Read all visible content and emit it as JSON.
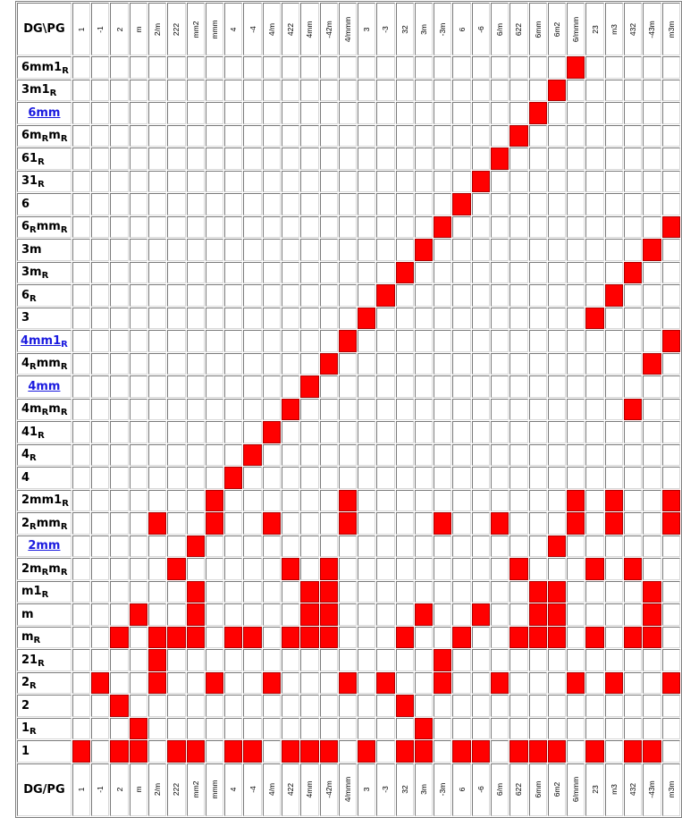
{
  "corner_top": "DG\\PG",
  "corner_bottom": "DG/PG",
  "columns": [
    "1",
    "-1",
    "2",
    "m",
    "2/m",
    "222",
    "mm2",
    "mmm",
    "4",
    "-4",
    "4/m",
    "422",
    "4mm",
    "-42m",
    "4/mmm",
    "3",
    "-3",
    "32",
    "3m",
    "-3m",
    "6",
    "-6",
    "6/m",
    "622",
    "6mm",
    "6m2",
    "6/mmm",
    "23",
    "m3",
    "432",
    "-43m",
    "m3m"
  ],
  "rows": [
    {
      "base": "6mm1",
      "sub": "R",
      "rest": "",
      "sub2": "",
      "link": false,
      "cells": [
        26
      ]
    },
    {
      "base": "3m1",
      "sub": "R",
      "rest": "",
      "sub2": "",
      "link": false,
      "cells": [
        25
      ]
    },
    {
      "base": "6mm",
      "sub": "",
      "rest": "",
      "sub2": "",
      "link": true,
      "cells": [
        24
      ]
    },
    {
      "base": "6m",
      "sub": "R",
      "rest": "m",
      "sub2": "R",
      "link": false,
      "cells": [
        23
      ]
    },
    {
      "base": "61",
      "sub": "R",
      "rest": "",
      "sub2": "",
      "link": false,
      "cells": [
        22
      ]
    },
    {
      "base": "31",
      "sub": "R",
      "rest": "",
      "sub2": "",
      "link": false,
      "cells": [
        21
      ]
    },
    {
      "base": "6",
      "sub": "",
      "rest": "",
      "sub2": "",
      "link": false,
      "cells": [
        20
      ]
    },
    {
      "base": "6",
      "sub": "R",
      "rest": "mm",
      "sub2": "R",
      "link": false,
      "cells": [
        19,
        31
      ]
    },
    {
      "base": "3m",
      "sub": "",
      "rest": "",
      "sub2": "",
      "link": false,
      "cells": [
        18,
        30
      ]
    },
    {
      "base": "3m",
      "sub": "R",
      "rest": "",
      "sub2": "",
      "link": false,
      "cells": [
        17,
        29
      ]
    },
    {
      "base": "6",
      "sub": "R",
      "rest": "",
      "sub2": "",
      "link": false,
      "cells": [
        16,
        28
      ]
    },
    {
      "base": "3",
      "sub": "",
      "rest": "",
      "sub2": "",
      "link": false,
      "cells": [
        15,
        27
      ]
    },
    {
      "base": "4mm1",
      "sub": "R",
      "rest": "",
      "sub2": "",
      "link": true,
      "cells": [
        14,
        31
      ]
    },
    {
      "base": "4",
      "sub": "R",
      "rest": "mm",
      "sub2": "R",
      "link": false,
      "cells": [
        13,
        30
      ]
    },
    {
      "base": "4mm",
      "sub": "",
      "rest": "",
      "sub2": "",
      "link": true,
      "cells": [
        12
      ]
    },
    {
      "base": "4m",
      "sub": "R",
      "rest": "m",
      "sub2": "R",
      "link": false,
      "cells": [
        11,
        29
      ]
    },
    {
      "base": "41",
      "sub": "R",
      "rest": "",
      "sub2": "",
      "link": false,
      "cells": [
        10
      ]
    },
    {
      "base": "4",
      "sub": "R",
      "rest": "",
      "sub2": "",
      "link": false,
      "cells": [
        9
      ]
    },
    {
      "base": "4",
      "sub": "",
      "rest": "",
      "sub2": "",
      "link": false,
      "cells": [
        8
      ]
    },
    {
      "base": "2mm1",
      "sub": "R",
      "rest": "",
      "sub2": "",
      "link": false,
      "cells": [
        7,
        14,
        26,
        28,
        31
      ]
    },
    {
      "base": "2",
      "sub": "R",
      "rest": "mm",
      "sub2": "R",
      "link": false,
      "cells": [
        4,
        7,
        10,
        14,
        19,
        22,
        26,
        28,
        31
      ]
    },
    {
      "base": "2mm",
      "sub": "",
      "rest": "",
      "sub2": "",
      "link": true,
      "cells": [
        6,
        25
      ]
    },
    {
      "base": "2m",
      "sub": "R",
      "rest": "m",
      "sub2": "R",
      "link": false,
      "cells": [
        5,
        11,
        13,
        23,
        27,
        29
      ]
    },
    {
      "base": "m1",
      "sub": "R",
      "rest": "",
      "sub2": "",
      "link": false,
      "cells": [
        6,
        12,
        13,
        24,
        25,
        30
      ]
    },
    {
      "base": "m",
      "sub": "",
      "rest": "",
      "sub2": "",
      "link": false,
      "cells": [
        3,
        6,
        12,
        13,
        18,
        21,
        24,
        25,
        30
      ]
    },
    {
      "base": "m",
      "sub": "R",
      "rest": "",
      "sub2": "",
      "link": false,
      "cells": [
        2,
        4,
        5,
        6,
        8,
        9,
        11,
        12,
        13,
        17,
        20,
        23,
        24,
        25,
        27,
        29,
        30
      ]
    },
    {
      "base": "21",
      "sub": "R",
      "rest": "",
      "sub2": "",
      "link": false,
      "cells": [
        4,
        19
      ]
    },
    {
      "base": "2",
      "sub": "R",
      "rest": "",
      "sub2": "",
      "link": false,
      "cells": [
        1,
        4,
        7,
        10,
        14,
        16,
        19,
        22,
        26,
        28,
        31
      ]
    },
    {
      "base": "2",
      "sub": "",
      "rest": "",
      "sub2": "",
      "link": false,
      "cells": [
        2,
        17
      ]
    },
    {
      "base": "1",
      "sub": "R",
      "rest": "",
      "sub2": "",
      "link": false,
      "cells": [
        3,
        18
      ]
    },
    {
      "base": "1",
      "sub": "",
      "rest": "",
      "sub2": "",
      "link": false,
      "cells": [
        0,
        2,
        3,
        5,
        6,
        8,
        9,
        11,
        12,
        13,
        15,
        17,
        18,
        20,
        21,
        23,
        24,
        25,
        27,
        29,
        30
      ]
    }
  ],
  "colors": {
    "filled": "#ff0000",
    "link": "#1a1adf"
  }
}
